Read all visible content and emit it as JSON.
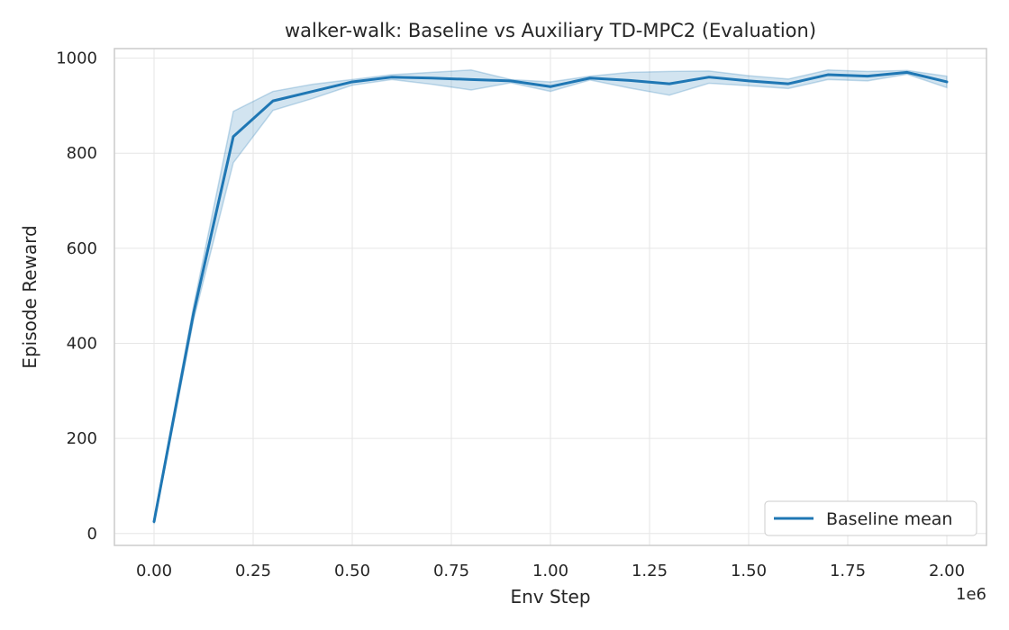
{
  "chart_data": {
    "type": "line",
    "title": "walker-walk: Baseline vs Auxiliary TD-MPC2 (Evaluation)",
    "xlabel": "Env Step",
    "ylabel": "Episode Reward",
    "x_offset_label": "1e6",
    "xlim": [
      -0.1,
      2.1
    ],
    "ylim": [
      -25,
      1020
    ],
    "xticks": [
      0.0,
      0.25,
      0.5,
      0.75,
      1.0,
      1.25,
      1.5,
      1.75,
      2.0
    ],
    "xtick_labels": [
      "0.00",
      "0.25",
      "0.50",
      "0.75",
      "1.00",
      "1.25",
      "1.50",
      "1.75",
      "2.00"
    ],
    "yticks": [
      0,
      200,
      400,
      600,
      800,
      1000
    ],
    "ytick_labels": [
      "0",
      "200",
      "400",
      "600",
      "800",
      "1000"
    ],
    "grid": true,
    "legend_position": "lower-right",
    "colors": {
      "series": "#1f77b4",
      "band": "#1f77b4",
      "grid": "#e6e6e6",
      "axes": "#cccccc"
    },
    "series": [
      {
        "name": "Baseline mean",
        "x": [
          0.0,
          0.1,
          0.2,
          0.3,
          0.4,
          0.5,
          0.6,
          0.7,
          0.8,
          0.9,
          1.0,
          1.1,
          1.2,
          1.3,
          1.4,
          1.5,
          1.6,
          1.7,
          1.8,
          1.9,
          2.0
        ],
        "y": [
          25,
          465,
          835,
          910,
          930,
          950,
          960,
          958,
          955,
          952,
          940,
          958,
          953,
          946,
          960,
          952,
          946,
          965,
          962,
          970,
          950
        ],
        "upper": [
          30,
          480,
          888,
          930,
          945,
          955,
          965,
          970,
          975,
          955,
          950,
          962,
          970,
          972,
          973,
          963,
          956,
          975,
          972,
          974,
          962
        ],
        "lower": [
          20,
          450,
          780,
          890,
          915,
          943,
          955,
          945,
          933,
          948,
          930,
          954,
          937,
          922,
          947,
          942,
          936,
          955,
          952,
          966,
          938
        ]
      }
    ]
  }
}
